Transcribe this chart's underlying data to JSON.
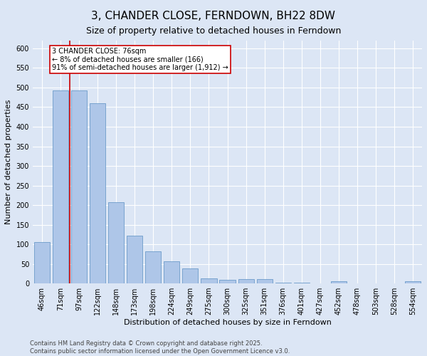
{
  "title": "3, CHANDER CLOSE, FERNDOWN, BH22 8DW",
  "subtitle": "Size of property relative to detached houses in Ferndown",
  "xlabel": "Distribution of detached houses by size in Ferndown",
  "ylabel": "Number of detached properties",
  "categories": [
    "46sqm",
    "71sqm",
    "97sqm",
    "122sqm",
    "148sqm",
    "173sqm",
    "198sqm",
    "224sqm",
    "249sqm",
    "275sqm",
    "300sqm",
    "325sqm",
    "351sqm",
    "376sqm",
    "401sqm",
    "427sqm",
    "452sqm",
    "478sqm",
    "503sqm",
    "528sqm",
    "554sqm"
  ],
  "values": [
    105,
    493,
    493,
    460,
    207,
    122,
    82,
    57,
    38,
    13,
    10,
    11,
    11,
    2,
    2,
    0,
    5,
    0,
    0,
    0,
    5
  ],
  "bar_color": "#aec6e8",
  "bar_edge_color": "#5a8fc2",
  "marker_line_color": "#cc0000",
  "annotation_text": "3 CHANDER CLOSE: 76sqm\n← 8% of detached houses are smaller (166)\n91% of semi-detached houses are larger (1,912) →",
  "annotation_box_color": "#ffffff",
  "annotation_box_edge_color": "#cc0000",
  "ylim": [
    0,
    620
  ],
  "yticks": [
    0,
    50,
    100,
    150,
    200,
    250,
    300,
    350,
    400,
    450,
    500,
    550,
    600
  ],
  "footer_text": "Contains HM Land Registry data © Crown copyright and database right 2025.\nContains public sector information licensed under the Open Government Licence v3.0.",
  "background_color": "#dce6f5",
  "grid_color": "#ffffff",
  "title_fontsize": 11,
  "subtitle_fontsize": 9,
  "axis_label_fontsize": 8,
  "tick_fontsize": 7,
  "annotation_fontsize": 7,
  "footer_fontsize": 6
}
